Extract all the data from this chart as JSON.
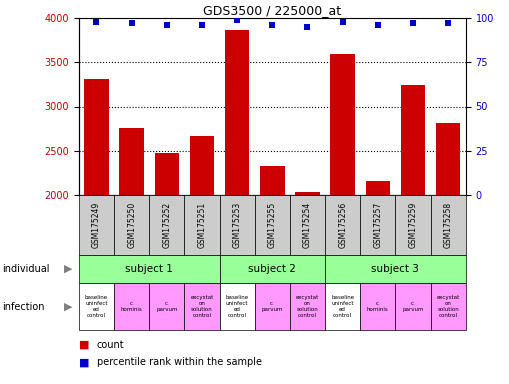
{
  "title": "GDS3500 / 225000_at",
  "samples": [
    "GSM175249",
    "GSM175250",
    "GSM175252",
    "GSM175251",
    "GSM175253",
    "GSM175255",
    "GSM175254",
    "GSM175256",
    "GSM175257",
    "GSM175259",
    "GSM175258"
  ],
  "counts": [
    3310,
    2760,
    2470,
    2670,
    3870,
    2330,
    2030,
    3590,
    2160,
    3240,
    2810
  ],
  "percentile_ranks": [
    98,
    97,
    96,
    96,
    99,
    96,
    95,
    98,
    96,
    97,
    97
  ],
  "ylim_left": [
    2000,
    4000
  ],
  "ylim_right": [
    0,
    100
  ],
  "yticks_left": [
    2000,
    2500,
    3000,
    3500,
    4000
  ],
  "yticks_right": [
    0,
    25,
    50,
    75,
    100
  ],
  "bar_color": "#cc0000",
  "dot_color": "#0000cc",
  "subjects": [
    {
      "label": "subject 1",
      "start": 0,
      "end": 4
    },
    {
      "label": "subject 2",
      "start": 4,
      "end": 7
    },
    {
      "label": "subject 3",
      "start": 7,
      "end": 11
    }
  ],
  "infections": [
    {
      "label": "baseline\nuninfect\ned\ncontrol",
      "col": 0,
      "color": "#ffffff"
    },
    {
      "label": "c.\nhominis",
      "col": 1,
      "color": "#ff99ff"
    },
    {
      "label": "c.\nparvum",
      "col": 2,
      "color": "#ff99ff"
    },
    {
      "label": "excystat\non\nsolution\ncontrol",
      "col": 3,
      "color": "#ff99ff"
    },
    {
      "label": "baseline\nuninfect\ned\ncontrol",
      "col": 4,
      "color": "#ffffff"
    },
    {
      "label": "c.\nparvum",
      "col": 5,
      "color": "#ff99ff"
    },
    {
      "label": "excystat\non\nsolution\ncontrol",
      "col": 6,
      "color": "#ff99ff"
    },
    {
      "label": "baseline\nuninfect\ned\ncontrol",
      "col": 7,
      "color": "#ffffff"
    },
    {
      "label": "c.\nhominis",
      "col": 8,
      "color": "#ff99ff"
    },
    {
      "label": "c.\nparvum",
      "col": 9,
      "color": "#ff99ff"
    },
    {
      "label": "excystat\non\nsolution\ncontrol",
      "col": 10,
      "color": "#ff99ff"
    }
  ],
  "sample_bg_color": "#cccccc",
  "subject_bg_color": "#99ff99",
  "left_ylabel_color": "#cc0000",
  "right_ylabel_color": "#0000cc",
  "legend_count_color": "#cc0000",
  "legend_pct_color": "#0000cc",
  "fig_width": 5.09,
  "fig_height": 3.84,
  "dpi": 100
}
